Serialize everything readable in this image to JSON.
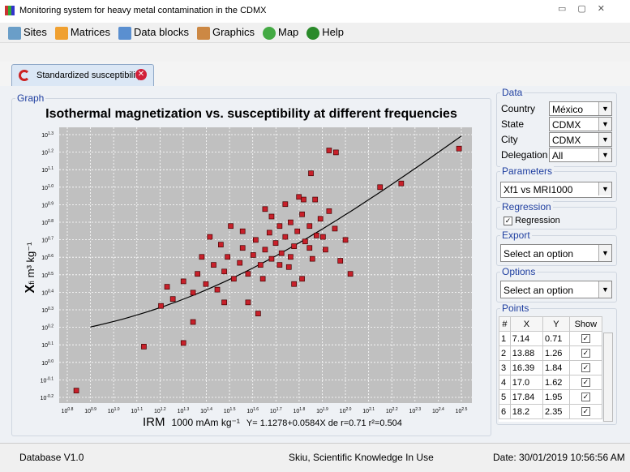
{
  "window": {
    "title": "Monitoring system for heavy metal contamination in the CDMX"
  },
  "menu": [
    "Sites",
    "Matrices",
    "Data blocks",
    "Graphics",
    "Map",
    "Help"
  ],
  "tab": {
    "label": "Standardized susceptibility"
  },
  "graph": {
    "legend": "Graph"
  },
  "chart_data": {
    "type": "scatter",
    "title": "Isothermal magnetization vs. susceptibility at different frequencies",
    "x_label": "IRM",
    "x_unit": "1000 mAm kg⁻¹",
    "y_label": "X",
    "y_label_sub": "fi",
    "y_unit": "m³ kg⁻¹",
    "equation": "Y= 1.1278+0.0584X de r=0.71 r²=0.504",
    "regression": {
      "intercept": 1.1278,
      "slope": 0.0584,
      "xlim": [
        7.94,
        316.23
      ],
      "color": "#000000"
    },
    "log_scale": true,
    "grid": true,
    "color": "#c8202a",
    "xlim": [
      6.3096,
      316.23
    ],
    "ylim": [
      0.631,
      19.953
    ],
    "xticks": [
      {
        "value": 6.3096,
        "label": "10",
        "exponent": "0.8"
      },
      {
        "value": 7.9433,
        "label": "10",
        "exponent": "0.9"
      },
      {
        "value": 10,
        "label": "10",
        "exponent": "1.0"
      },
      {
        "value": 12.589,
        "label": "10",
        "exponent": "1.1"
      },
      {
        "value": 15.849,
        "label": "10",
        "exponent": "1.2"
      },
      {
        "value": 19.953,
        "label": "10",
        "exponent": "1.3"
      },
      {
        "value": 25.119,
        "label": "10",
        "exponent": "1.4"
      },
      {
        "value": 31.623,
        "label": "10",
        "exponent": "1.5"
      },
      {
        "value": 39.811,
        "label": "10",
        "exponent": "1.6"
      },
      {
        "value": 50.119,
        "label": "10",
        "exponent": "1.7"
      },
      {
        "value": 63.096,
        "label": "10",
        "exponent": "1.8"
      },
      {
        "value": 79.433,
        "label": "10",
        "exponent": "1.9"
      },
      {
        "value": 100,
        "label": "10",
        "exponent": "2.0"
      },
      {
        "value": 125.89,
        "label": "10",
        "exponent": "2.1"
      },
      {
        "value": 158.49,
        "label": "10",
        "exponent": "2.2"
      },
      {
        "value": 199.53,
        "label": "10",
        "exponent": "2.3"
      },
      {
        "value": 251.19,
        "label": "10",
        "exponent": "2.4"
      },
      {
        "value": 316.23,
        "label": "10",
        "exponent": "2.5"
      }
    ],
    "yticks": [
      {
        "value": 0.631,
        "label": "10",
        "exponent": "-0.2"
      },
      {
        "value": 0.7943,
        "label": "10",
        "exponent": "-0.1"
      },
      {
        "value": 1,
        "label": "10",
        "exponent": "0.0"
      },
      {
        "value": 1.2589,
        "label": "10",
        "exponent": "0.1"
      },
      {
        "value": 1.5849,
        "label": "10",
        "exponent": "0.2"
      },
      {
        "value": 1.9953,
        "label": "10",
        "exponent": "0.3"
      },
      {
        "value": 2.5119,
        "label": "10",
        "exponent": "0.4"
      },
      {
        "value": 3.1623,
        "label": "10",
        "exponent": "0.5"
      },
      {
        "value": 3.9811,
        "label": "10",
        "exponent": "0.6"
      },
      {
        "value": 5.0119,
        "label": "10",
        "exponent": "0.7"
      },
      {
        "value": 6.3096,
        "label": "10",
        "exponent": "0.8"
      },
      {
        "value": 7.9433,
        "label": "10",
        "exponent": "0.9"
      },
      {
        "value": 10,
        "label": "10",
        "exponent": "1.0"
      },
      {
        "value": 12.589,
        "label": "10",
        "exponent": "1.1"
      },
      {
        "value": 15.849,
        "label": "10",
        "exponent": "1.2"
      },
      {
        "value": 19.953,
        "label": "10",
        "exponent": "1.3"
      }
    ],
    "x": [
      6.9,
      13.5,
      20,
      85,
      91,
      309,
      141,
      174,
      71,
      66,
      74,
      16,
      17,
      18,
      20,
      22,
      23,
      25,
      27,
      28,
      30,
      31,
      33,
      35,
      36,
      38,
      40,
      41,
      43,
      45,
      47,
      48,
      50,
      52,
      53,
      55,
      57,
      58,
      60,
      62,
      65,
      67,
      70,
      72,
      75,
      78,
      82,
      85,
      90,
      95,
      100,
      105,
      26,
      32,
      45,
      55,
      38,
      42,
      60,
      24,
      30,
      65,
      48,
      36,
      29,
      44,
      52,
      58,
      70,
      80,
      63,
      22
    ],
    "values": [
      0.69,
      1.23,
      1.29,
      16.2,
      15.8,
      16.6,
      10,
      10.5,
      12,
      8.5,
      8.5,
      2.1,
      2.7,
      2.3,
      2.9,
      2.5,
      3.2,
      2.8,
      3.6,
      2.6,
      3.3,
      4.0,
      3.0,
      3.7,
      4.5,
      3.2,
      4.1,
      5.0,
      3.6,
      4.4,
      5.5,
      3.9,
      4.8,
      6.0,
      4.2,
      5.2,
      3.5,
      6.3,
      4.6,
      5.6,
      7.0,
      4.9,
      6.0,
      3.9,
      5.3,
      6.6,
      4.4,
      7.3,
      5.8,
      3.8,
      5.0,
      3.2,
      5.2,
      6.0,
      7.5,
      8.0,
      2.2,
      1.9,
      2.8,
      4.0,
      2.2,
      3.0,
      6.8,
      5.6,
      4.7,
      3.0,
      3.6,
      4.0,
      4.5,
      5.2,
      8.8,
      1.7
    ]
  },
  "data_panel": {
    "legend": "Data",
    "fields": [
      {
        "label": "Country",
        "value": "México"
      },
      {
        "label": "State",
        "value": "CDMX"
      },
      {
        "label": "City",
        "value": "CDMX"
      },
      {
        "label": "Delegation",
        "value": "All"
      }
    ]
  },
  "parameters": {
    "legend": "Parameters",
    "value": "Xf1 vs MRI1000"
  },
  "regression_panel": {
    "legend": "Regression",
    "checkbox": "Regression"
  },
  "export": {
    "legend": "Export",
    "value": "Select an option"
  },
  "options": {
    "legend": "Options",
    "value": "Select an option"
  },
  "points": {
    "legend": "Points",
    "columns": [
      "#",
      "X",
      "Y",
      "Show"
    ],
    "rows": [
      [
        "1",
        "7.14",
        "0.71"
      ],
      [
        "2",
        "13.88",
        "1.26"
      ],
      [
        "3",
        "16.39",
        "1.84"
      ],
      [
        "4",
        "17.0",
        "1.62"
      ],
      [
        "5",
        "17.84",
        "1.95"
      ],
      [
        "6",
        "18.2",
        "2.35"
      ]
    ]
  },
  "status": {
    "left": "Database V1.0",
    "center": "Skiu, Scientific Knowledge In Use",
    "right": "Date: 30/01/2019 10:56:56 AM"
  }
}
